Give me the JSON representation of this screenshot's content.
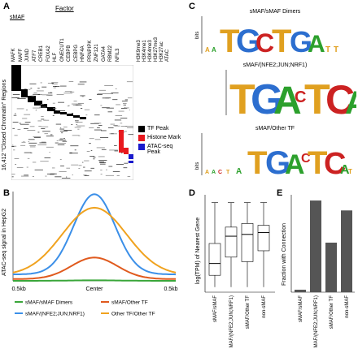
{
  "panels": {
    "A": {
      "label": "A",
      "factor_header": "Factor",
      "smaf_label": "sMAF",
      "y_axis_label": "16,412 \"Closed Chromatin\" Regions",
      "columns": [
        "MAFK",
        "MAFF",
        "JUND",
        "ATF7",
        "CREB1",
        "FOXA2",
        "HLF",
        "ONECUT1",
        "CEBPB",
        "CEBPG",
        "HNF4A",
        "PRNPIPK",
        "ZNF121",
        "GATA4",
        "RBM22",
        "NFIL3"
      ],
      "mark_columns": [
        "H3K9me3",
        "H3K4me1",
        "H3K4me3",
        "H3K27me3",
        "H3K27ac",
        "ATAC"
      ],
      "legend": [
        {
          "label": "TF Peak",
          "color": "#000000"
        },
        {
          "label": "Histone Mark",
          "color": "#e8191e"
        },
        {
          "label": "ATAC-seq Peak",
          "color": "#1a1acc"
        }
      ]
    },
    "B": {
      "label": "B",
      "chart_data": {
        "type": "line",
        "ylabel": "ATAC-seq signal in HepG2",
        "x_ticks": [
          "-0.5kb",
          "Center",
          "0.5kb"
        ],
        "series": [
          {
            "name": "sMAF/sMAF Dimers",
            "color": "#3aa63a",
            "peak": 5
          },
          {
            "name": "sMAF/(NFE2;JUN;NRF1)",
            "color": "#3b8fe8",
            "peak": 800
          },
          {
            "name": "sMAF/Other TF",
            "color": "#e05a1e",
            "peak": 215
          },
          {
            "name": "Other TF/Other TF",
            "color": "#f0a21e",
            "peak": 675
          }
        ]
      }
    },
    "C": {
      "label": "C",
      "logos": [
        {
          "title": "sMAF/sMAF Dimers",
          "text": "TGCTGA  TCAGCA"
        },
        {
          "title": "sMAF/(NFE2;JUN;NRF1)",
          "text": "TGACTCA"
        },
        {
          "title": "sMAF/Other TF",
          "text": "TGAC TCA"
        }
      ],
      "ylabel": "bits"
    },
    "D": {
      "label": "D",
      "chart_data": {
        "type": "box",
        "ylabel": "log(TPM) of Nearest Gene",
        "categories": [
          "sMAF/sMAF",
          "sMAF/(NFE2;JUN;NRF1)",
          "sMAF/Other TF",
          "non-sMAF"
        ],
        "boxes": [
          {
            "q1": 0.15,
            "median": 0.28,
            "q3": 0.5
          },
          {
            "q1": 0.35,
            "median": 0.58,
            "q3": 0.68
          },
          {
            "q1": 0.3,
            "median": 0.6,
            "q3": 0.72
          },
          {
            "q1": 0.42,
            "median": 0.62,
            "q3": 0.7
          }
        ]
      }
    },
    "E": {
      "label": "E",
      "chart_data": {
        "type": "bar",
        "ylabel": "Fraction with Connection",
        "categories": [
          "sMAF/sMAF",
          "sMAF/(NFE2;JUN;NRF1)",
          "sMAF/Other TF",
          "non-sMAF"
        ],
        "values": [
          0.01,
          0.37,
          0.2,
          0.33
        ],
        "color": "#555555"
      }
    }
  }
}
